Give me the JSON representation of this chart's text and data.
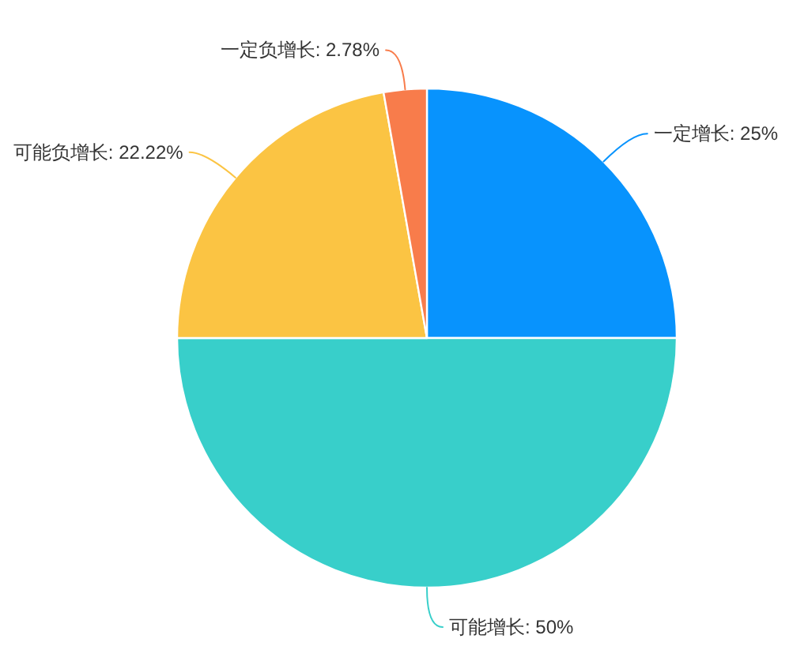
{
  "chart_data": {
    "type": "pie",
    "categories": [
      "一定增长",
      "可能增长",
      "可能负增长",
      "一定负增长"
    ],
    "values": [
      25,
      50,
      22.22,
      2.78
    ],
    "colors": [
      "#0893fd",
      "#38cfca",
      "#fbc443",
      "#f87c4b"
    ],
    "value_labels": [
      "25%",
      "50%",
      "22.22%",
      "2.78%"
    ]
  }
}
